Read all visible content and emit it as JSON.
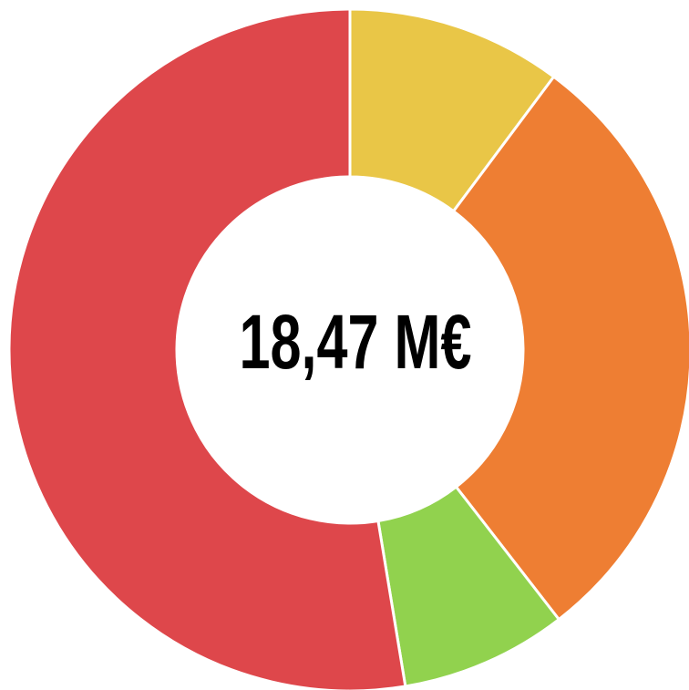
{
  "chart_data": {
    "type": "donut",
    "center_text": "18,47 M€",
    "values": [
      10.2,
      29.3,
      7.9,
      52.6
    ],
    "colors": [
      "#e9c647",
      "#ee7e33",
      "#91d24e",
      "#de474b"
    ]
  }
}
